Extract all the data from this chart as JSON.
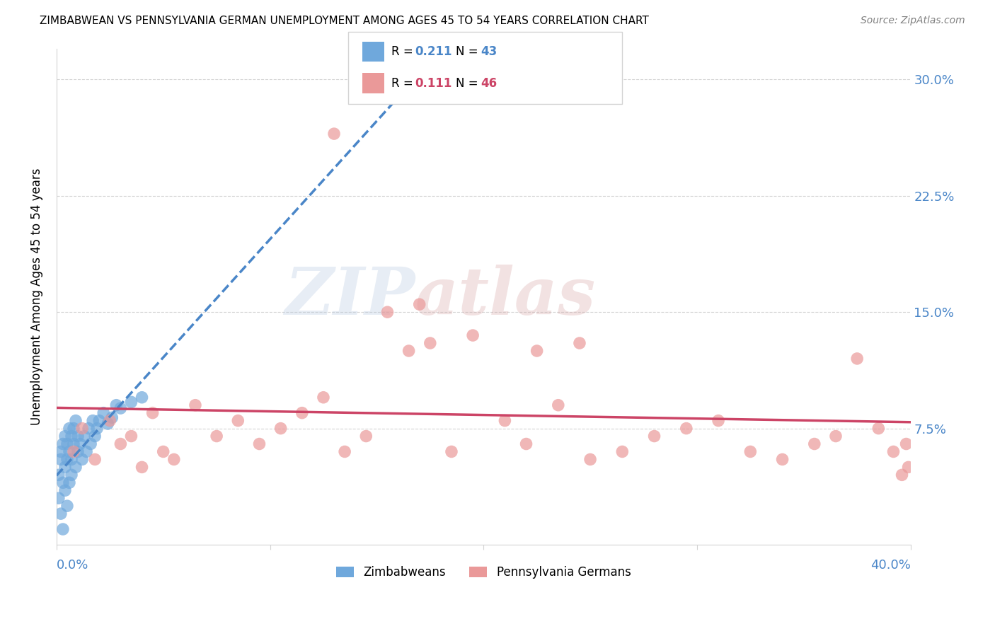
{
  "title": "ZIMBABWEAN VS PENNSYLVANIA GERMAN UNEMPLOYMENT AMONG AGES 45 TO 54 YEARS CORRELATION CHART",
  "source": "Source: ZipAtlas.com",
  "ylabel": "Unemployment Among Ages 45 to 54 years",
  "ytick_labels": [
    "7.5%",
    "15.0%",
    "22.5%",
    "30.0%"
  ],
  "ytick_values": [
    0.075,
    0.15,
    0.225,
    0.3
  ],
  "xlim": [
    0.0,
    0.4
  ],
  "ylim": [
    0.0,
    0.32
  ],
  "zimbabwean_color": "#6fa8dc",
  "pa_german_color": "#ea9999",
  "trend_blue_color": "#4a86c8",
  "trend_pink_color": "#cc4466",
  "watermark_zip": "ZIP",
  "watermark_atlas": "atlas",
  "zimbabwean_R": 0.211,
  "zimbabwean_N": 43,
  "pa_german_R": 0.111,
  "pa_german_N": 46,
  "zim_x": [
    0.001,
    0.001,
    0.002,
    0.002,
    0.002,
    0.003,
    0.003,
    0.003,
    0.004,
    0.004,
    0.004,
    0.005,
    0.005,
    0.005,
    0.006,
    0.006,
    0.006,
    0.007,
    0.007,
    0.007,
    0.008,
    0.008,
    0.009,
    0.009,
    0.01,
    0.01,
    0.011,
    0.012,
    0.013,
    0.014,
    0.015,
    0.016,
    0.017,
    0.018,
    0.019,
    0.02,
    0.022,
    0.024,
    0.026,
    0.028,
    0.03,
    0.035,
    0.04
  ],
  "zim_y": [
    0.045,
    0.03,
    0.06,
    0.02,
    0.055,
    0.04,
    0.065,
    0.01,
    0.05,
    0.07,
    0.035,
    0.055,
    0.065,
    0.025,
    0.06,
    0.075,
    0.04,
    0.055,
    0.07,
    0.045,
    0.065,
    0.075,
    0.05,
    0.08,
    0.06,
    0.07,
    0.065,
    0.055,
    0.07,
    0.06,
    0.075,
    0.065,
    0.08,
    0.07,
    0.075,
    0.08,
    0.085,
    0.078,
    0.082,
    0.09,
    0.088,
    0.092,
    0.095
  ],
  "pa_x": [
    0.008,
    0.012,
    0.018,
    0.025,
    0.03,
    0.035,
    0.04,
    0.045,
    0.05,
    0.055,
    0.065,
    0.075,
    0.085,
    0.095,
    0.105,
    0.115,
    0.125,
    0.135,
    0.145,
    0.155,
    0.165,
    0.175,
    0.185,
    0.195,
    0.21,
    0.22,
    0.235,
    0.25,
    0.265,
    0.28,
    0.295,
    0.31,
    0.325,
    0.34,
    0.355,
    0.365,
    0.375,
    0.385,
    0.392,
    0.396,
    0.398,
    0.399,
    0.13,
    0.17,
    0.225,
    0.245
  ],
  "pa_y": [
    0.06,
    0.075,
    0.055,
    0.08,
    0.065,
    0.07,
    0.05,
    0.085,
    0.06,
    0.055,
    0.09,
    0.07,
    0.08,
    0.065,
    0.075,
    0.085,
    0.095,
    0.06,
    0.07,
    0.15,
    0.125,
    0.13,
    0.06,
    0.135,
    0.08,
    0.065,
    0.09,
    0.055,
    0.06,
    0.07,
    0.075,
    0.08,
    0.06,
    0.055,
    0.065,
    0.07,
    0.12,
    0.075,
    0.06,
    0.045,
    0.065,
    0.05,
    0.265,
    0.155,
    0.125,
    0.13
  ]
}
